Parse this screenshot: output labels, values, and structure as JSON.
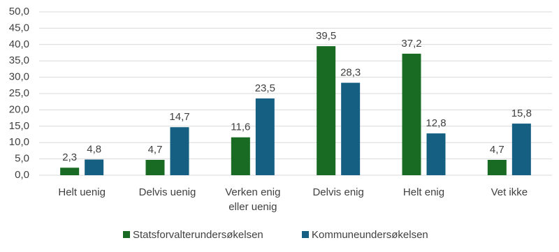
{
  "chart_data": {
    "type": "bar",
    "categories": [
      "Helt uenig",
      "Delvis uenig",
      "Verken enig eller uenig",
      "Delvis enig",
      "Helt enig",
      "Vet ikke"
    ],
    "series": [
      {
        "name": "Statsforvalterundersøkelsen",
        "color": "#196B24",
        "values": [
          2.3,
          4.7,
          11.6,
          39.5,
          37.2,
          4.7
        ],
        "value_labels": [
          "2,3",
          "4,7",
          "11,6",
          "39,5",
          "37,2",
          "4,7"
        ]
      },
      {
        "name": "Kommuneundersøkelsen",
        "color": "#156082",
        "values": [
          4.8,
          14.7,
          23.5,
          28.3,
          12.8,
          15.8
        ],
        "value_labels": [
          "4,8",
          "14,7",
          "23,5",
          "28,3",
          "12,8",
          "15,8"
        ]
      }
    ],
    "ylim": [
      0,
      50
    ],
    "yticks": [
      {
        "value": 0,
        "label": "0,0"
      },
      {
        "value": 5,
        "label": "5,0"
      },
      {
        "value": 10,
        "label": "10,0"
      },
      {
        "value": 15,
        "label": "15,0"
      },
      {
        "value": 20,
        "label": "20,0"
      },
      {
        "value": 25,
        "label": "25,0"
      },
      {
        "value": 30,
        "label": "30,0"
      },
      {
        "value": 35,
        "label": "35,0"
      },
      {
        "value": 40,
        "label": "40,0"
      },
      {
        "value": 45,
        "label": "45,0"
      },
      {
        "value": 50,
        "label": "50,0"
      }
    ],
    "grid": true,
    "legend": "bottom"
  }
}
